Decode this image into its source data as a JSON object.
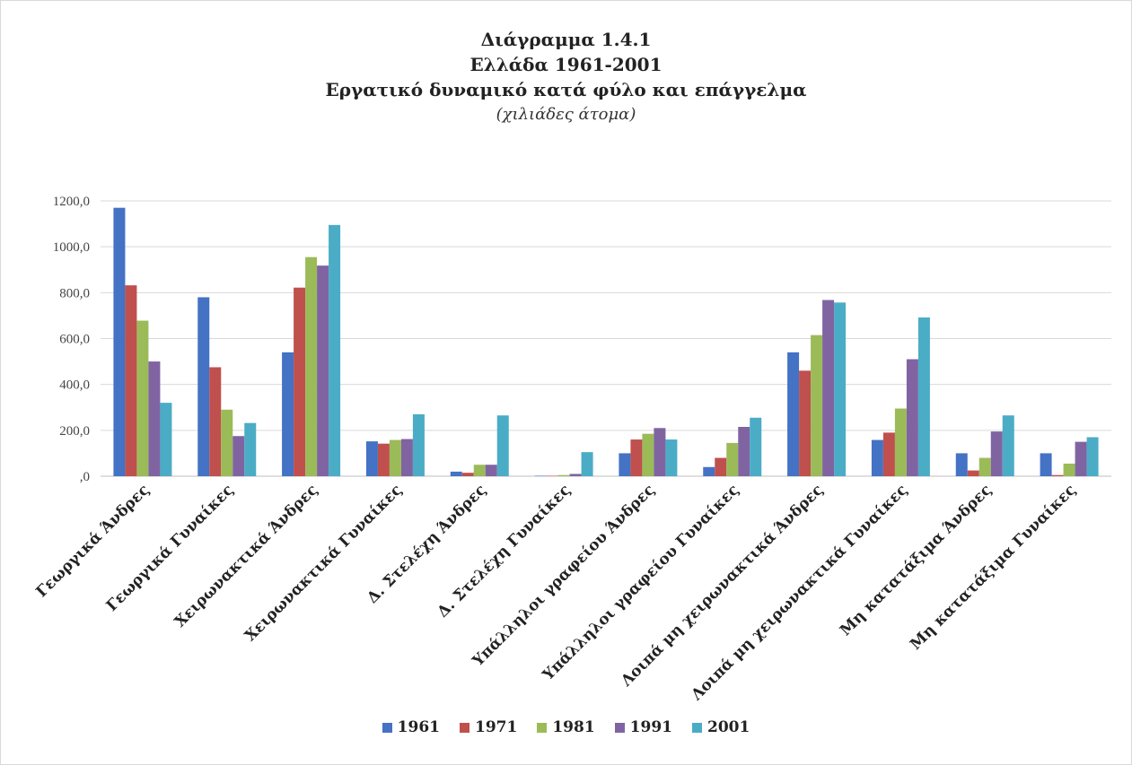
{
  "chart_data": {
    "type": "bar",
    "title": "Διάγραμμα 1.4.1",
    "subtitle_lines": [
      "Ελλάδα 1961-2001",
      "Εργατικό δυναμικό κατά φύλο και επάγγελμα"
    ],
    "units_note": "(χιλιάδες άτομα)",
    "categories": [
      "Γεωργικά Άνδρες",
      "Γεωργικά Γυναίκες",
      "Χειρωνακτικά Άνδρες",
      "Χειρωνακτικά Γυναίκες",
      "Δ. Στελέχη Άνδρες",
      "Δ. Στελέχη Γυναίκες",
      "Υπάλληλοι γραφείου Άνδρες",
      "Υπάλληλοι γραφείου Γυναίκες",
      "Λοιπά μη χειρωνακτικά Άνδρες",
      "Λοιπά μη χειρωνακτικά Γυναίκες",
      "Μη κατατάξιμα Άνδρες",
      "Μη κατατάξιμα Γυναίκες"
    ],
    "series": [
      {
        "name": "1961",
        "color": "#4472C4",
        "values": [
          1170,
          780,
          540,
          152,
          20,
          2,
          100,
          40,
          540,
          158,
          100,
          100
        ]
      },
      {
        "name": "1971",
        "color": "#C0504D",
        "values": [
          832,
          475,
          822,
          142,
          15,
          2,
          160,
          80,
          460,
          190,
          25,
          5
        ]
      },
      {
        "name": "1981",
        "color": "#9BBB59",
        "values": [
          678,
          290,
          955,
          158,
          50,
          5,
          185,
          145,
          615,
          295,
          80,
          55
        ]
      },
      {
        "name": "1991",
        "color": "#8064A2",
        "values": [
          500,
          175,
          918,
          162,
          50,
          10,
          210,
          215,
          768,
          510,
          195,
          150
        ]
      },
      {
        "name": "2001",
        "color": "#4BACC6",
        "values": [
          320,
          232,
          1095,
          270,
          265,
          105,
          160,
          255,
          757,
          692,
          265,
          170
        ]
      }
    ],
    "yticks": [
      ",0",
      "200,0",
      "400,0",
      "600,0",
      "800,0",
      "1000,0",
      "1200,0"
    ],
    "ylim": [
      0,
      1200
    ],
    "grid": true,
    "legend_position": "bottom"
  }
}
